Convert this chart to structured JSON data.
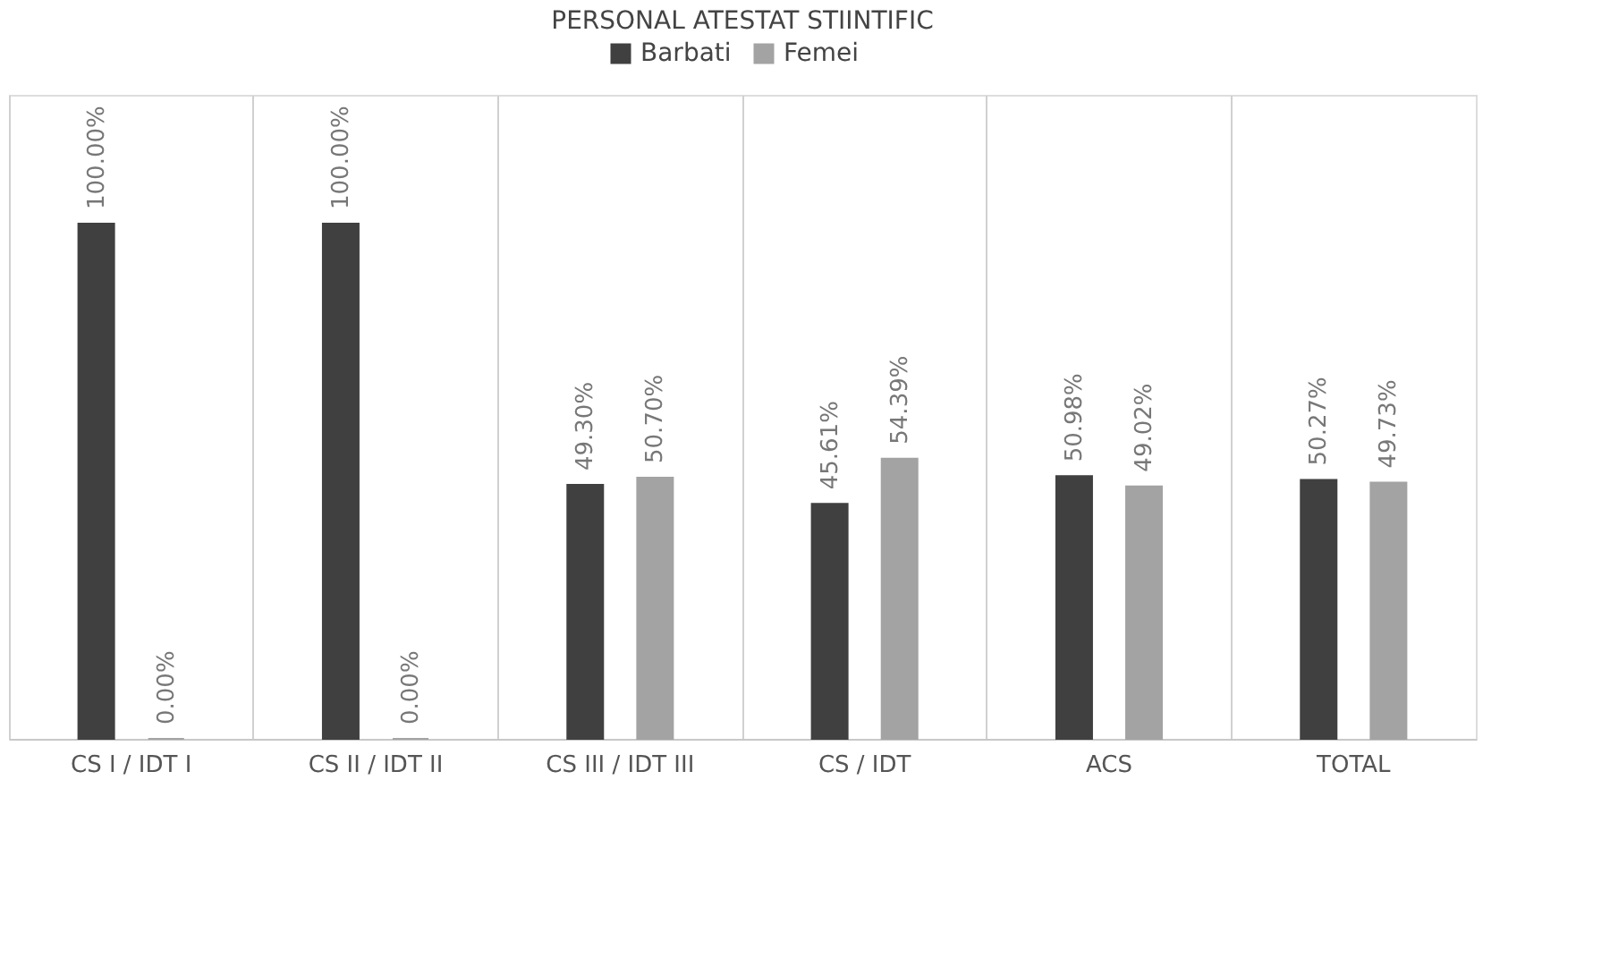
{
  "chart_data": {
    "type": "bar",
    "title": "PERSONAL ATESTAT STIINTIFIC",
    "categories": [
      "CS I / IDT I",
      "CS II / IDT II",
      "CS III / IDT III",
      "CS / IDT",
      "ACS",
      "TOTAL"
    ],
    "series": [
      {
        "name": "Barbati",
        "color": "#404040",
        "values": [
          100.0,
          100.0,
          49.3,
          45.61,
          50.98,
          50.27
        ],
        "value_labels": [
          "100.00%",
          "100.00%",
          "49.30%",
          "45.61%",
          "50.98%",
          "50.27%"
        ]
      },
      {
        "name": "Femei",
        "color": "#a3a3a3",
        "values": [
          0.0,
          0.0,
          50.7,
          54.39,
          49.02,
          49.73
        ],
        "value_labels": [
          "0.00%",
          "0.00%",
          "50.70%",
          "54.39%",
          "49.02%",
          "49.73%"
        ]
      }
    ],
    "legend": "top",
    "grid": "x"
  }
}
